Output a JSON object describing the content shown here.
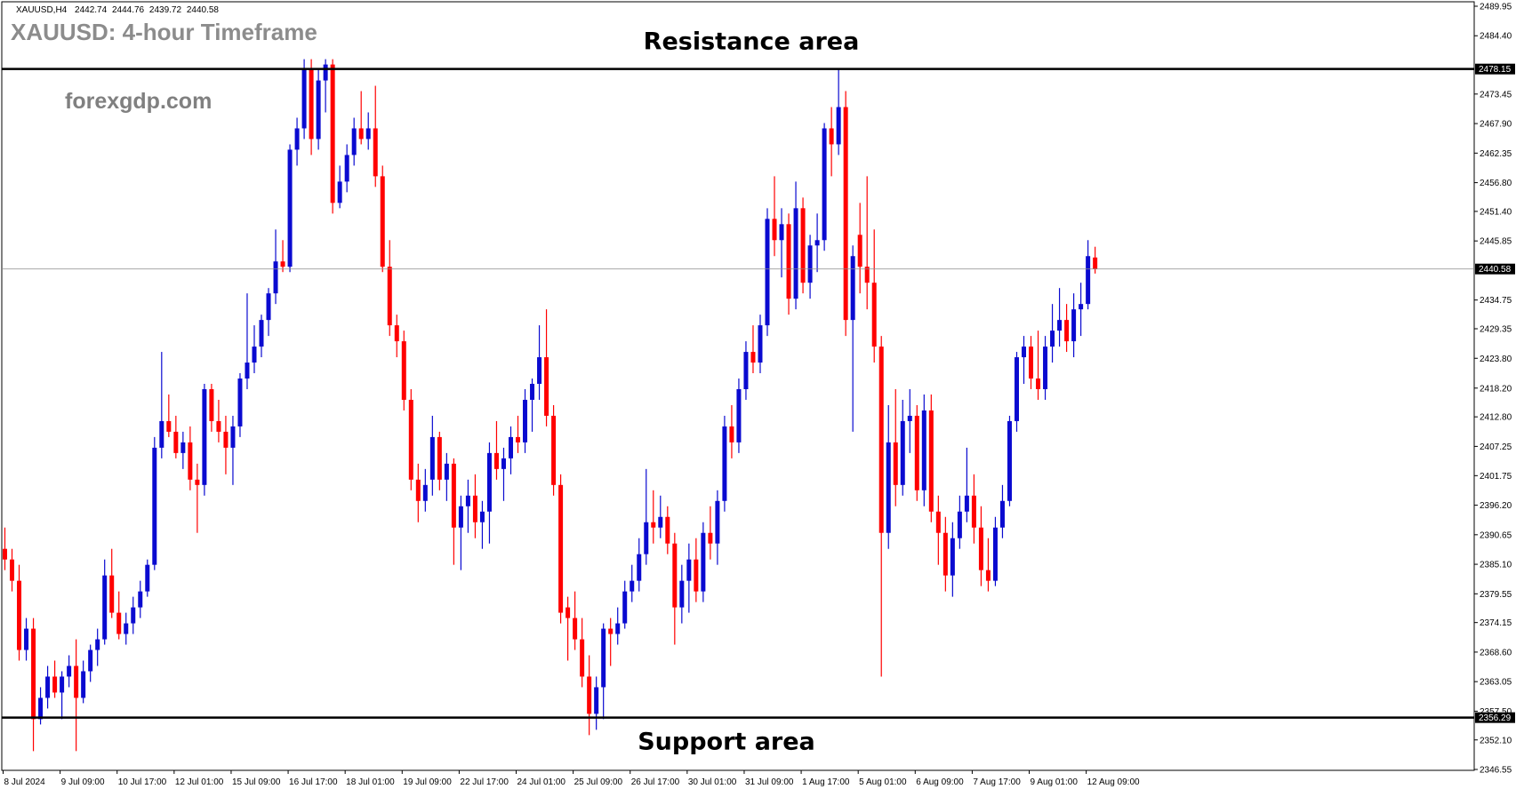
{
  "header": {
    "symbol": "XAUUSD,H4"
  },
  "title": "XAUUSD: 4-hour Timeframe",
  "watermark": "forexgdp.com",
  "chart_data": {
    "type": "candlestick",
    "up_color": "#0a0ad0",
    "down_color": "#ff0000",
    "open": [
      2388,
      2386,
      2382,
      2369,
      2373,
      2356,
      2360,
      2364,
      2361,
      2364,
      2366,
      2360,
      2365,
      2369,
      2371,
      2383,
      2376,
      2372,
      2374,
      2377,
      2380,
      2385,
      2407,
      2412,
      2410,
      2406,
      2408,
      2401,
      2400,
      2418,
      2412,
      2410,
      2407,
      2411,
      2420,
      2423,
      2426,
      2431,
      2436,
      2442,
      2441,
      2463,
      2467,
      2478,
      2465,
      2476,
      2479,
      2453,
      2457,
      2462,
      2467,
      2465,
      2467,
      2458,
      2441,
      2430,
      2427,
      2416,
      2401,
      2397,
      2401,
      2409,
      2401,
      2404,
      2392,
      2396,
      2398,
      2393,
      2395,
      2406,
      2403,
      2405,
      2409,
      2408,
      2416,
      2419,
      2424,
      2413,
      2400,
      2377,
      2375,
      2371,
      2364,
      2357,
      2362,
      2373,
      2372,
      2374,
      2380,
      2382,
      2387,
      2393,
      2392,
      2394,
      2389,
      2377,
      2382,
      2386,
      2380,
      2391,
      2389,
      2397,
      2411,
      2408,
      2418,
      2425,
      2423,
      2430,
      2450,
      2446,
      2449,
      2435,
      2452,
      2438,
      2445,
      2446,
      2467,
      2464,
      2471,
      2431,
      2447,
      2441,
      2438,
      2426,
      2391,
      2408,
      2400,
      2412,
      2413,
      2399,
      2414,
      2395,
      2391,
      2383,
      2390,
      2395,
      2398,
      2392,
      2384,
      2382,
      2392,
      2397,
      2412,
      2424,
      2426,
      2420,
      2418,
      2426,
      2429,
      2431,
      2427,
      2433,
      2434,
      2442.74
    ],
    "high": [
      2392,
      2388,
      2385,
      2375,
      2375,
      2362,
      2366,
      2367,
      2365,
      2368,
      2371,
      2367,
      2370,
      2373,
      2386,
      2388,
      2380,
      2376,
      2379,
      2382,
      2386,
      2409,
      2425,
      2417,
      2413,
      2410,
      2411,
      2404,
      2419,
      2419,
      2416,
      2413,
      2413,
      2421,
      2436,
      2430,
      2432,
      2437,
      2448,
      2446,
      2464,
      2469,
      2480,
      2480,
      2478,
      2480,
      2480,
      2460,
      2464,
      2469,
      2474,
      2470,
      2475,
      2460,
      2446,
      2432,
      2429,
      2418,
      2404,
      2403,
      2413,
      2410,
      2406,
      2405,
      2398,
      2401,
      2402,
      2397,
      2408,
      2412,
      2407,
      2411,
      2413,
      2418,
      2420,
      2430,
      2433,
      2415,
      2402,
      2379,
      2380,
      2375,
      2368,
      2364,
      2374,
      2375,
      2377,
      2382,
      2385,
      2390,
      2403,
      2399,
      2398,
      2396,
      2391,
      2385,
      2389,
      2390,
      2393,
      2396,
      2399,
      2413,
      2415,
      2420,
      2427,
      2430,
      2432,
      2452,
      2458,
      2452,
      2451,
      2457,
      2454,
      2447,
      2451,
      2468,
      2471,
      2478,
      2474,
      2445,
      2453,
      2458,
      2448,
      2428,
      2415,
      2418,
      2416,
      2418,
      2415,
      2417,
      2417,
      2398,
      2394,
      2393,
      2398,
      2407,
      2402,
      2396,
      2390,
      2394,
      2400,
      2413,
      2425,
      2428,
      2428,
      2429,
      2428,
      2434,
      2437,
      2434,
      2436,
      2438,
      2446,
      2444.76
    ],
    "low": [
      2384,
      2380,
      2367,
      2367,
      2350,
      2355,
      2358,
      2360,
      2356,
      2362,
      2350,
      2359,
      2363,
      2366,
      2370,
      2375,
      2371,
      2370,
      2372,
      2375,
      2379,
      2384,
      2405,
      2409,
      2405,
      2403,
      2399,
      2391,
      2398,
      2410,
      2408,
      2402,
      2400,
      2409,
      2418,
      2421,
      2424,
      2428,
      2434,
      2440,
      2440,
      2460,
      2465,
      2462,
      2463,
      2470,
      2451,
      2452,
      2455,
      2460,
      2464,
      2463,
      2456,
      2440,
      2428,
      2424,
      2414,
      2399,
      2393,
      2395,
      2398,
      2399,
      2397,
      2385,
      2384,
      2391,
      2390,
      2388,
      2389,
      2401,
      2397,
      2402,
      2406,
      2406,
      2410,
      2416,
      2411,
      2398,
      2374,
      2367,
      2369,
      2362,
      2353,
      2354,
      2356,
      2366,
      2370,
      2373,
      2378,
      2380,
      2385,
      2389,
      2390,
      2387,
      2370,
      2374,
      2376,
      2378,
      2378,
      2386,
      2385,
      2395,
      2405,
      2406,
      2416,
      2421,
      2421,
      2428,
      2443,
      2439,
      2432,
      2433,
      2436,
      2435,
      2440,
      2444,
      2458,
      2462,
      2428,
      2410,
      2436,
      2433,
      2423,
      2364,
      2388,
      2396,
      2398,
      2406,
      2397,
      2396,
      2393,
      2385,
      2380,
      2379,
      2388,
      2393,
      2389,
      2381,
      2380,
      2381,
      2390,
      2396,
      2410,
      2419,
      2418,
      2416,
      2416,
      2423,
      2426,
      2425,
      2424,
      2428,
      2433,
      2439.72
    ],
    "close": [
      2386,
      2382,
      2369,
      2373,
      2356,
      2360,
      2364,
      2361,
      2364,
      2366,
      2360,
      2365,
      2369,
      2371,
      2383,
      2376,
      2372,
      2374,
      2377,
      2380,
      2385,
      2407,
      2412,
      2410,
      2406,
      2408,
      2401,
      2400,
      2418,
      2412,
      2410,
      2407,
      2411,
      2420,
      2423,
      2426,
      2431,
      2436,
      2442,
      2441,
      2463,
      2467,
      2478,
      2465,
      2476,
      2479,
      2453,
      2457,
      2462,
      2467,
      2465,
      2467,
      2458,
      2441,
      2430,
      2427,
      2416,
      2401,
      2397,
      2400,
      2409,
      2401,
      2404,
      2392,
      2396,
      2398,
      2393,
      2395,
      2406,
      2403,
      2405,
      2409,
      2408,
      2416,
      2419,
      2424,
      2413,
      2400,
      2376,
      2375,
      2371,
      2364,
      2357,
      2362,
      2373,
      2372,
      2374,
      2380,
      2382,
      2387,
      2393,
      2392,
      2394,
      2389,
      2377,
      2382,
      2386,
      2380,
      2391,
      2389,
      2397,
      2411,
      2408,
      2418,
      2425,
      2423,
      2430,
      2450,
      2446,
      2449,
      2435,
      2452,
      2438,
      2445,
      2446,
      2467,
      2464,
      2471,
      2431,
      2443,
      2441,
      2438,
      2426,
      2391,
      2408,
      2400,
      2412,
      2413,
      2399,
      2414,
      2395,
      2391,
      2383,
      2390,
      2395,
      2398,
      2392,
      2384,
      2382,
      2392,
      2397,
      2412,
      2424,
      2426,
      2420,
      2418,
      2426,
      2429,
      2431,
      2427,
      2433,
      2434,
      2443,
      2440.58
    ],
    "xticks": [
      {
        "value": 0,
        "label": "8 Jul 2024"
      },
      {
        "value": 8,
        "label": "9 Jul 09:00"
      },
      {
        "value": 16,
        "label": "10 Jul 17:00"
      },
      {
        "value": 24,
        "label": "12 Jul 01:00"
      },
      {
        "value": 32,
        "label": "15 Jul 09:00"
      },
      {
        "value": 40,
        "label": "16 Jul 17:00"
      },
      {
        "value": 48,
        "label": "18 Jul 01:00"
      },
      {
        "value": 56,
        "label": "19 Jul 09:00"
      },
      {
        "value": 64,
        "label": "22 Jul 17:00"
      },
      {
        "value": 72,
        "label": "24 Jul 01:00"
      },
      {
        "value": 80,
        "label": "25 Jul 09:00"
      },
      {
        "value": 88,
        "label": "26 Jul 17:00"
      },
      {
        "value": 96,
        "label": "30 Jul 01:00"
      },
      {
        "value": 104,
        "label": "31 Jul 09:00"
      },
      {
        "value": 112,
        "label": "1 Aug 17:00"
      },
      {
        "value": 120,
        "label": "5 Aug 01:00"
      },
      {
        "value": 128,
        "label": "6 Aug 09:00"
      },
      {
        "value": 136,
        "label": "7 Aug 17:00"
      },
      {
        "value": 144,
        "label": "9 Aug 01:00"
      },
      {
        "value": 152,
        "label": "12 Aug 09:00"
      }
    ],
    "ylim": [
      2346.55,
      2489.95
    ],
    "yticks": [
      2489.95,
      {
        "value": 2484.4,
        "label": "2484.40"
      },
      2473.45,
      {
        "value": 2467.9,
        "label": "2467.90"
      },
      2462.35,
      {
        "value": 2456.8,
        "label": "2456.80"
      },
      {
        "value": 2451.4,
        "label": "2451.40"
      },
      2445.85,
      2434.75,
      2429.35,
      {
        "value": 2423.8,
        "label": "2423.80"
      },
      {
        "value": 2418.2,
        "label": "2418.20"
      },
      {
        "value": 2412.8,
        "label": "2412.80"
      },
      2407.25,
      2401.75,
      {
        "value": 2396.2,
        "label": "2396.20"
      },
      2390.65,
      {
        "value": 2385.1,
        "label": "2385.10"
      },
      2379.55,
      2374.15,
      {
        "value": 2368.6,
        "label": "2368.60"
      },
      2363.05,
      {
        "value": 2357.5,
        "label": "2357.50"
      },
      {
        "value": 2352.1,
        "label": "2352.10"
      },
      2346.55
    ],
    "levels": [
      {
        "label": "Resistance area",
        "value": 2478.15
      },
      {
        "label": "Support area",
        "value": 2356.29
      }
    ]
  }
}
